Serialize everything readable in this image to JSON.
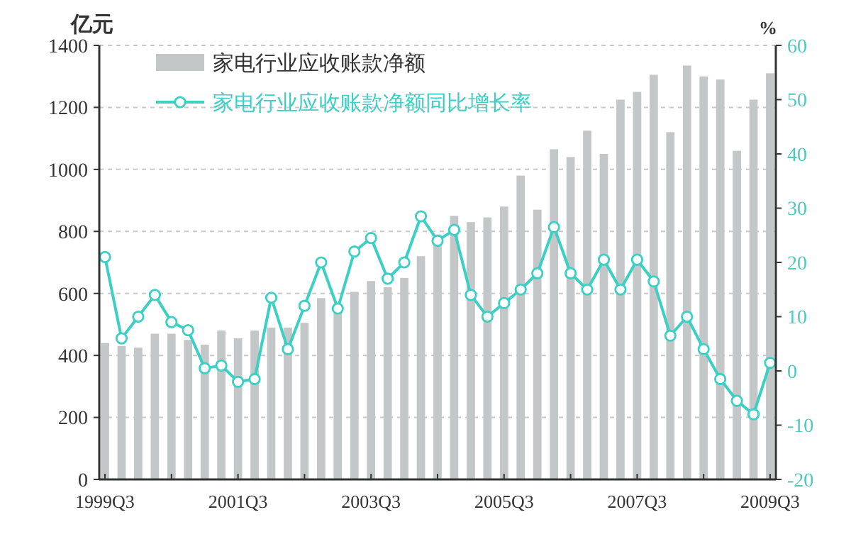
{
  "chart_data": {
    "type": "bar",
    "ylabel": "亿元",
    "y2label": "%",
    "categories": [
      "1999Q3",
      null,
      null,
      null,
      null,
      null,
      null,
      null,
      "2001Q3",
      null,
      null,
      null,
      null,
      null,
      null,
      null,
      "2003Q3",
      null,
      null,
      null,
      null,
      null,
      null,
      null,
      "2005Q3",
      null,
      null,
      null,
      null,
      null,
      null,
      null,
      "2007Q3",
      null,
      null,
      null,
      null,
      null,
      null,
      null,
      "2009Q3"
    ],
    "series": [
      {
        "name": "家电行业应收账款净额",
        "color": "#c3c7c7",
        "values": [
          440,
          430,
          425,
          470,
          470,
          450,
          435,
          480,
          455,
          480,
          490,
          490,
          505,
          585,
          540,
          605,
          640,
          620,
          650,
          720,
          790,
          850,
          830,
          845,
          880,
          980,
          870,
          1065,
          1040,
          1125,
          1050,
          1225,
          1250,
          1305,
          1120,
          1335,
          1300,
          1290,
          1060,
          1225,
          1310
        ]
      },
      {
        "name": "家电行业应收账款净额同比增长率",
        "type": "line",
        "axis": "y2",
        "marker": "circle",
        "color": "#3ccfc4",
        "values": [
          21,
          6,
          10,
          14,
          9,
          7.5,
          0.5,
          1,
          -2,
          -1.5,
          13.5,
          4,
          12,
          20,
          11.5,
          22,
          24.5,
          17,
          20,
          28.5,
          24,
          26,
          14,
          10,
          12.5,
          15,
          18,
          26.5,
          18,
          15,
          20.5,
          15,
          20.5,
          16.5,
          6.5,
          10,
          4,
          -1.5,
          -5.5,
          -8,
          1.5
        ]
      }
    ],
    "ylim": [
      0,
      1400
    ],
    "yticks": [
      0,
      200,
      400,
      600,
      800,
      1000,
      1200,
      1400
    ],
    "y2lim": [
      -20,
      60
    ],
    "y2ticks": [
      -20,
      -10,
      0,
      10,
      20,
      30,
      40,
      50,
      60
    ],
    "grid": "y",
    "legend": "top left"
  }
}
